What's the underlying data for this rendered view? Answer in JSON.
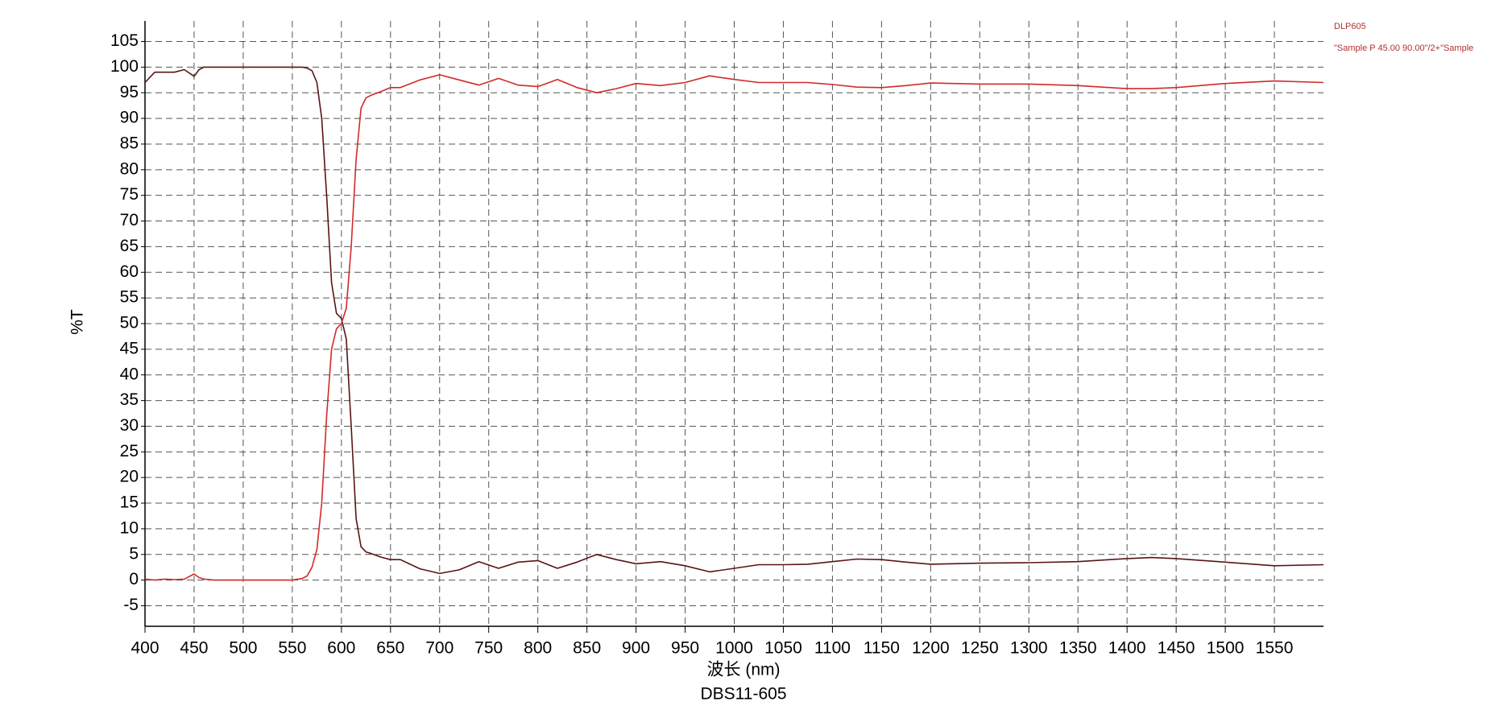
{
  "chart_data": {
    "type": "line",
    "title": "DBS11-605",
    "x_label": "波长 (nm)",
    "y_label": "%T",
    "x": [
      400,
      410,
      420,
      430,
      440,
      450,
      455,
      460,
      470,
      480,
      500,
      520,
      540,
      550,
      560,
      565,
      570,
      575,
      580,
      585,
      590,
      595,
      600,
      605,
      610,
      615,
      620,
      625,
      630,
      640,
      650,
      660,
      680,
      700,
      720,
      740,
      760,
      780,
      800,
      820,
      840,
      860,
      880,
      900,
      925,
      950,
      975,
      1000,
      1025,
      1050,
      1075,
      1100,
      1125,
      1150,
      1175,
      1200,
      1250,
      1300,
      1350,
      1400,
      1425,
      1450,
      1500,
      1550,
      1600
    ],
    "series": [
      {
        "name": "DLP605",
        "color": "#5a1414",
        "values": [
          97,
          99,
          99,
          99,
          99.5,
          98.2,
          99.5,
          100,
          100,
          100,
          100,
          100,
          100,
          100,
          100,
          99.8,
          99.3,
          97,
          90,
          75,
          58,
          52,
          51,
          47,
          30,
          12,
          6.5,
          5.5,
          5.2,
          4.5,
          4,
          4,
          2.2,
          1.3,
          2,
          3.6,
          2.3,
          3.5,
          3.8,
          2.3,
          3.5,
          5,
          4,
          3.2,
          3.6,
          2.8,
          1.6,
          2.3,
          3,
          3,
          3.1,
          3.6,
          4.1,
          4,
          3.5,
          3.1,
          3.3,
          3.4,
          3.6,
          4.2,
          4.4,
          4.2,
          3.5,
          2.8,
          3
        ]
      },
      {
        "name": "\"Sample P 45.00 90.00\"/2+\"Sample",
        "color": "#d02a2a",
        "values": [
          0.2,
          0,
          0.2,
          0.1,
          0.2,
          1.2,
          0.5,
          0.2,
          0,
          0,
          0,
          0,
          0,
          0,
          0.3,
          0.8,
          2.5,
          6,
          15,
          32,
          45,
          49,
          50,
          53,
          65,
          82,
          92,
          94,
          94.5,
          95.2,
          96,
          96,
          97.5,
          98.5,
          97.5,
          96.5,
          97.8,
          96.5,
          96.2,
          97.6,
          96,
          95,
          95.8,
          96.8,
          96.4,
          97,
          98.3,
          97.6,
          97,
          97,
          97,
          96.6,
          96.1,
          96,
          96.4,
          96.9,
          96.7,
          96.7,
          96.4,
          95.8,
          95.8,
          96,
          96.8,
          97.3,
          97
        ]
      }
    ],
    "xlim": [
      400,
      1600
    ],
    "ylim": [
      -9,
      109
    ],
    "xticks": [
      400,
      450,
      500,
      550,
      600,
      650,
      700,
      750,
      800,
      850,
      900,
      950,
      1000,
      1050,
      1100,
      1150,
      1200,
      1250,
      1300,
      1350,
      1400,
      1450,
      1500,
      1550
    ],
    "yticks": [
      -5,
      0,
      5,
      10,
      15,
      20,
      25,
      30,
      35,
      40,
      45,
      50,
      55,
      60,
      65,
      70,
      75,
      80,
      85,
      90,
      95,
      100,
      105
    ],
    "grid": true
  }
}
